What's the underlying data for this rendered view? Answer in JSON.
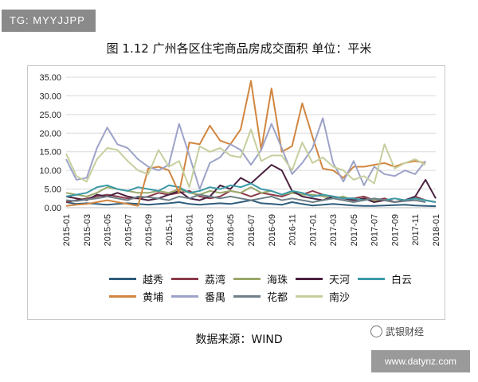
{
  "watermark_top": "TG: MYYJJPP",
  "caption": "图 1.12  广州各区住宅商品房成交面积    单位：平米",
  "source": "数据来源：WIND",
  "brand": "武银财经",
  "watermark_bottom": "www.datynz.com",
  "chart_data": {
    "type": "line",
    "ylim": [
      0,
      35
    ],
    "yticks": [
      "0.00",
      "5.00",
      "10.00",
      "15.00",
      "20.00",
      "25.00",
      "30.00",
      "35.00"
    ],
    "xtick_labels": [
      "2015-01",
      "2015-03",
      "2015-05",
      "2015-07",
      "2015-09",
      "2015-11",
      "2016-01",
      "2016-03",
      "2016-05",
      "2016-07",
      "2016-09",
      "2016-11",
      "2017-01",
      "2017-03",
      "2017-05",
      "2017-07",
      "2017-09",
      "2017-11",
      "2018-01"
    ],
    "legend_position": "bottom",
    "series": [
      {
        "name": "越秀",
        "color": "#2f5d7c",
        "values": [
          1.5,
          1.0,
          1.2,
          1.0,
          0.8,
          1.0,
          1.2,
          1.0,
          0.8,
          1.0,
          1.2,
          1.5,
          1.0,
          0.8,
          1.0,
          1.2,
          1.0,
          1.5,
          2.0,
          1.2,
          1.0,
          0.8,
          1.5,
          1.0,
          0.6,
          0.8,
          1.0,
          0.8,
          0.6,
          0.5,
          0.5,
          0.6,
          0.7,
          0.8,
          0.6,
          0.5,
          0.4
        ]
      },
      {
        "name": "荔湾",
        "color": "#8b3a4a",
        "values": [
          1.5,
          2.0,
          2.5,
          3.0,
          3.5,
          3.0,
          2.5,
          2.5,
          3.0,
          4.0,
          3.5,
          4.0,
          4.5,
          3.0,
          2.5,
          3.0,
          4.5,
          4.0,
          3.0,
          4.0,
          3.5,
          3.0,
          4.0,
          3.5,
          4.5,
          3.5,
          3.0,
          2.5,
          2.5,
          3.0,
          2.0,
          2.5,
          1.5,
          2.0,
          3.0,
          2.0,
          1.5
        ]
      },
      {
        "name": "海珠",
        "color": "#9aa86a",
        "values": [
          4.0,
          3.5,
          3.0,
          4.0,
          5.5,
          5.0,
          4.5,
          4.0,
          4.0,
          4.5,
          4.0,
          5.0,
          4.0,
          3.5,
          4.5,
          4.0,
          4.5,
          4.0,
          5.5,
          4.0,
          4.5,
          3.5,
          4.0,
          3.5,
          3.5,
          3.0,
          2.5,
          3.0,
          2.0,
          2.5,
          2.0,
          2.0,
          2.5,
          2.0,
          2.5,
          2.0,
          1.5
        ]
      },
      {
        "name": "天河",
        "color": "#4b2140",
        "values": [
          3.0,
          2.5,
          2.0,
          3.5,
          3.0,
          4.0,
          3.0,
          2.5,
          2.0,
          2.5,
          3.5,
          4.5,
          2.5,
          2.0,
          3.0,
          6.0,
          5.0,
          8.0,
          6.5,
          9.0,
          11.5,
          10.0,
          4.5,
          3.0,
          2.5,
          2.0,
          3.0,
          2.5,
          2.0,
          2.5,
          1.5,
          2.0,
          1.5,
          2.0,
          3.0,
          7.5,
          2.5
        ]
      },
      {
        "name": "白云",
        "color": "#3b9aa8",
        "values": [
          3.0,
          3.5,
          4.0,
          5.5,
          6.0,
          5.0,
          4.5,
          5.5,
          5.0,
          4.5,
          6.0,
          5.5,
          4.0,
          4.5,
          5.5,
          5.0,
          6.0,
          5.5,
          6.5,
          5.0,
          4.5,
          3.5,
          4.5,
          4.0,
          3.0,
          3.5,
          3.0,
          2.5,
          2.5,
          2.0,
          2.5,
          2.0,
          2.5,
          2.0,
          2.5,
          2.0,
          1.5
        ]
      },
      {
        "name": "黄埔",
        "color": "#d0863f",
        "values": [
          0.5,
          0.8,
          1.0,
          1.5,
          2.0,
          1.5,
          1.0,
          0.5,
          10.5,
          11.0,
          10.0,
          4.0,
          17.5,
          17.0,
          22.0,
          18.0,
          17.0,
          21.0,
          34.0,
          15.5,
          32.0,
          15.0,
          16.5,
          28.0,
          19.0,
          10.5,
          10.0,
          8.0,
          11.0,
          11.0,
          11.5,
          12.0,
          11.0,
          12.0,
          12.5,
          12.0
        ]
      },
      {
        "name": "番禺",
        "color": "#9da3c8",
        "values": [
          13.0,
          7.5,
          8.0,
          16.0,
          21.5,
          17.0,
          16.0,
          13.0,
          11.0,
          10.0,
          11.5,
          22.5,
          14.0,
          5.0,
          12.0,
          13.5,
          17.0,
          15.5,
          11.5,
          15.5,
          22.5,
          16.0,
          9.0,
          12.0,
          16.0,
          24.0,
          12.0,
          7.0,
          12.5,
          6.0,
          11.0,
          9.0,
          8.5,
          10.0,
          9.0,
          12.5
        ]
      },
      {
        "name": "花都",
        "color": "#6f7f87",
        "values": [
          2.0,
          1.8,
          2.2,
          2.5,
          3.0,
          2.5,
          2.0,
          3.0,
          2.8,
          2.5,
          2.0,
          3.0,
          2.5,
          3.5,
          3.0,
          2.5,
          3.0,
          2.5,
          2.0,
          2.5,
          3.0,
          2.0,
          2.5,
          2.0,
          1.5,
          2.0,
          2.5,
          2.0,
          1.5,
          2.0,
          2.5,
          2.0,
          1.5,
          1.8,
          2.0,
          1.5
        ]
      },
      {
        "name": "南沙",
        "color": "#c5cf9e",
        "values": [
          14.5,
          8.5,
          7.0,
          13.0,
          16.0,
          15.5,
          12.5,
          10.0,
          9.0,
          15.5,
          11.0,
          12.5,
          5.5,
          16.5,
          15.0,
          16.0,
          14.0,
          13.5,
          21.0,
          12.5,
          14.0,
          14.0,
          10.0,
          17.5,
          12.0,
          13.5,
          11.0,
          10.0,
          7.5,
          8.5,
          6.5,
          17.0,
          10.5,
          12.0,
          13.0,
          11.5
        ]
      }
    ]
  }
}
